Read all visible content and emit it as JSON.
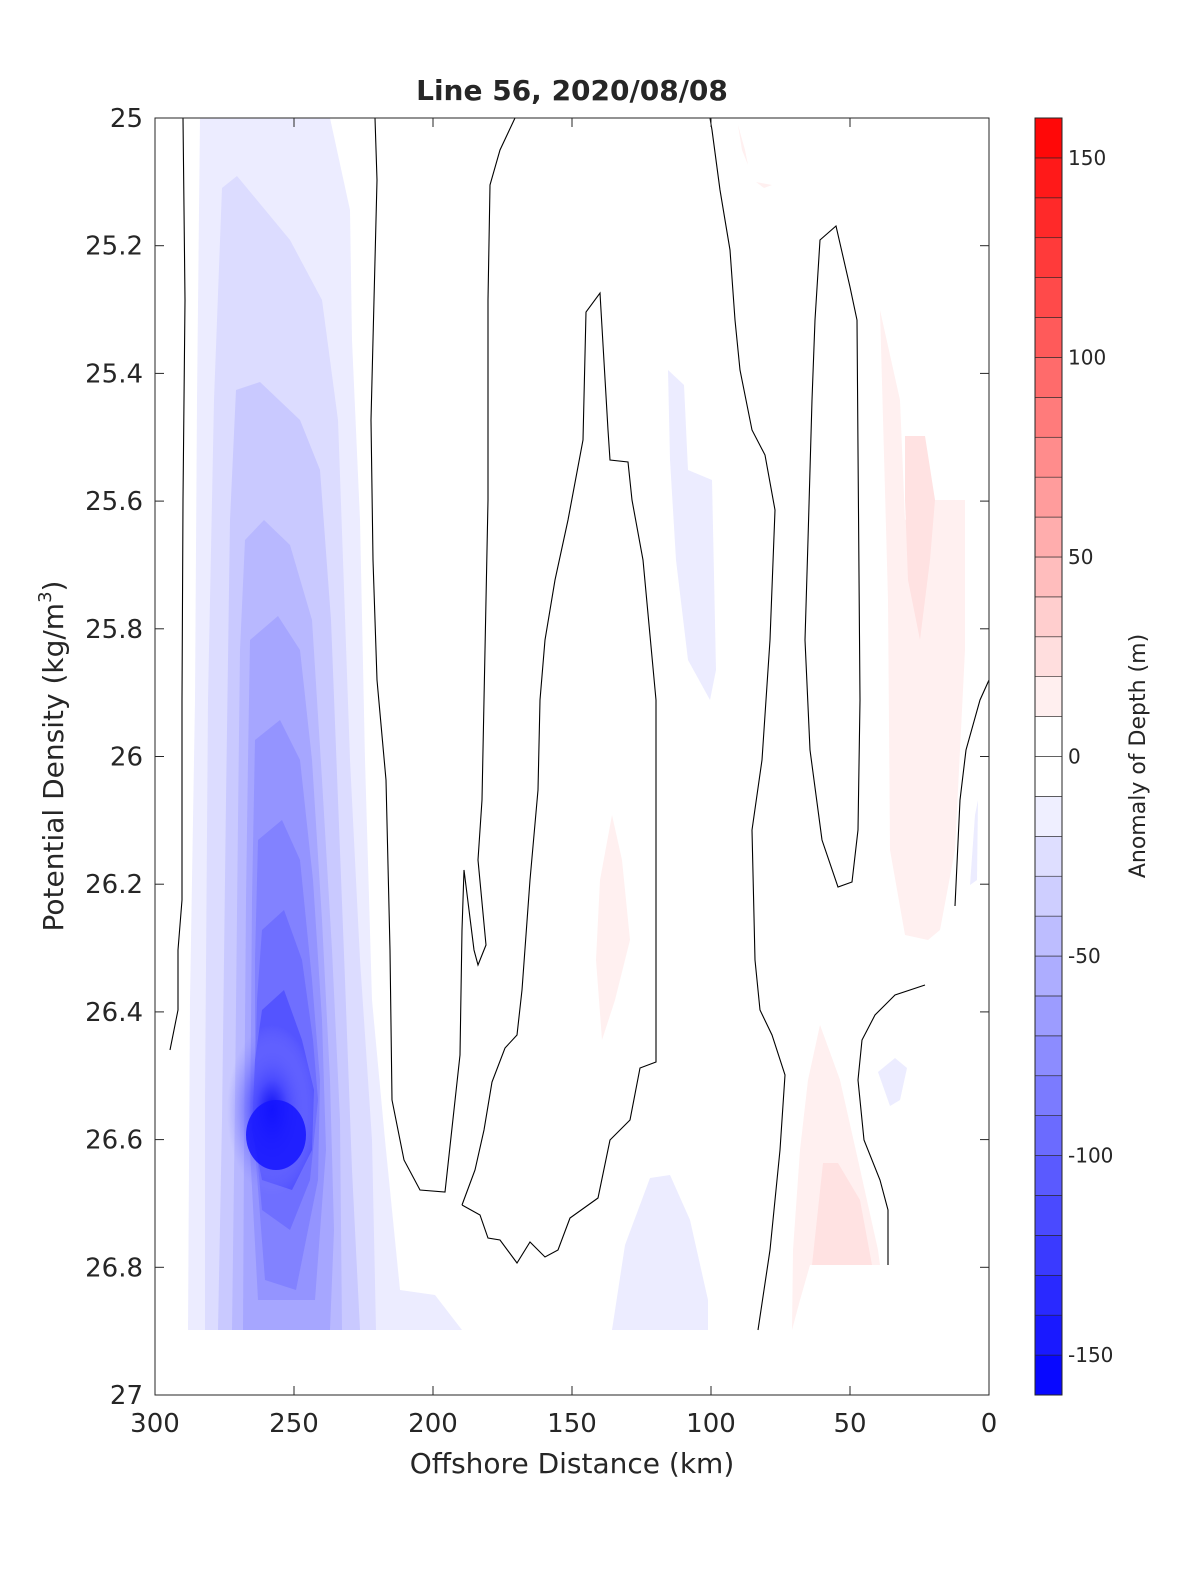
{
  "chart_data": {
    "type": "contour",
    "title": "Line 56, 2020/08/08",
    "xlabel": "Offshore Distance (km)",
    "ylabel": "Potential Density (kg/m³)",
    "ylabel_base": "Potential Density (kg/m",
    "ylabel_sup": "3",
    "ylabel_close": ")",
    "colorbar_label": "Anomaly of Depth (m)",
    "xlim": [
      300,
      0
    ],
    "ylim": [
      25,
      27
    ],
    "y_reversed": true,
    "xticks": [
      300,
      250,
      200,
      150,
      100,
      50,
      0
    ],
    "yticks": [
      25,
      25.2,
      25.4,
      25.6,
      25.8,
      26,
      26.2,
      26.4,
      26.6,
      26.8,
      27
    ],
    "ytick_labels": [
      "25",
      "25.2",
      "25.4",
      "25.6",
      "25.8",
      "26",
      "26.2",
      "26.4",
      "26.6",
      "26.8",
      "27"
    ],
    "colorbar": {
      "range": [
        -160,
        160
      ],
      "step": 10,
      "ticks": [
        150,
        100,
        50,
        0,
        -50,
        -100,
        -150
      ],
      "colormap": "blue-white-red",
      "neg_color": "#0000ff",
      "pos_color": "#ff0000"
    },
    "filled_anomalies": [
      {
        "name": "main-negative-core",
        "sign": "negative",
        "x_range": [
          287,
          190
        ],
        "y_range": [
          25.0,
          26.9
        ],
        "peak_value": -150,
        "peak_at": [
          258,
          26.59
        ]
      },
      {
        "name": "offshore-weak-negative",
        "sign": "negative",
        "x_range": [
          120,
          102
        ],
        "y_range": [
          25.4,
          25.9
        ],
        "peak_value": -10
      },
      {
        "name": "bottom-weak-negative",
        "sign": "negative",
        "x_range": [
          136,
          101
        ],
        "y_range": [
          26.65,
          26.9
        ],
        "peak_value": -10
      },
      {
        "name": "small-negative-patch",
        "sign": "negative",
        "x_range": [
          40,
          29
        ],
        "y_range": [
          26.47,
          26.58
        ],
        "peak_value": -10
      },
      {
        "name": "nearshore-positive",
        "sign": "positive",
        "x_range": [
          40,
          8
        ],
        "y_range": [
          25.3,
          26.3
        ],
        "peak_value": 20
      },
      {
        "name": "mid-positive",
        "sign": "positive",
        "x_range": [
          142,
          128
        ],
        "y_range": [
          26.1,
          26.45
        ],
        "peak_value": 10
      },
      {
        "name": "shelf-positive",
        "sign": "positive",
        "x_range": [
          71,
          40
        ],
        "y_range": [
          26.42,
          26.9
        ],
        "peak_value": 20
      }
    ],
    "zero_contours_present": true
  }
}
